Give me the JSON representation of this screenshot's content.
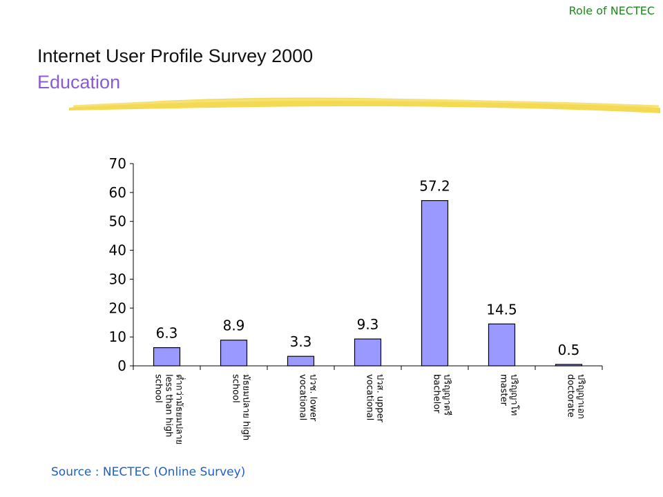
{
  "header": {
    "corner_label": "Role of NECTEC",
    "title": "Internet User Profile Survey 2000",
    "subtitle": "Education"
  },
  "footer": {
    "source": "Source : NECTEC (Online Survey)"
  },
  "colors": {
    "bar": "#9999ff",
    "title_accent": "#8a5bd6",
    "corner": "#1a8a1a",
    "source": "#1f5fbf",
    "highlight_stroke": "#f2d435"
  },
  "chart_data": {
    "type": "bar",
    "categories": [
      [
        "ต่ำกว่ามัธยมปลาย",
        "less than high",
        "school"
      ],
      [
        "มัธยมปลาย high",
        "school"
      ],
      [
        "ปวช. lower",
        "vocational"
      ],
      [
        "ปวส. upper",
        "vocational"
      ],
      [
        "ปริญญาตรี",
        "bachelor"
      ],
      [
        "ปริญญาโท",
        "master"
      ],
      [
        "ปริญญาเอก",
        "doctorate"
      ]
    ],
    "values": [
      6.3,
      8.9,
      3.3,
      9.3,
      57.2,
      14.5,
      0.5
    ],
    "data_labels": [
      "6.3",
      "8.9",
      "3.3",
      "9.3",
      "57.2",
      "14.5",
      "0.5"
    ],
    "yticks": [
      "0",
      "10",
      "20",
      "30",
      "40",
      "50",
      "60",
      "70"
    ],
    "ylim": [
      0,
      70
    ],
    "grid": false,
    "legend": false
  }
}
